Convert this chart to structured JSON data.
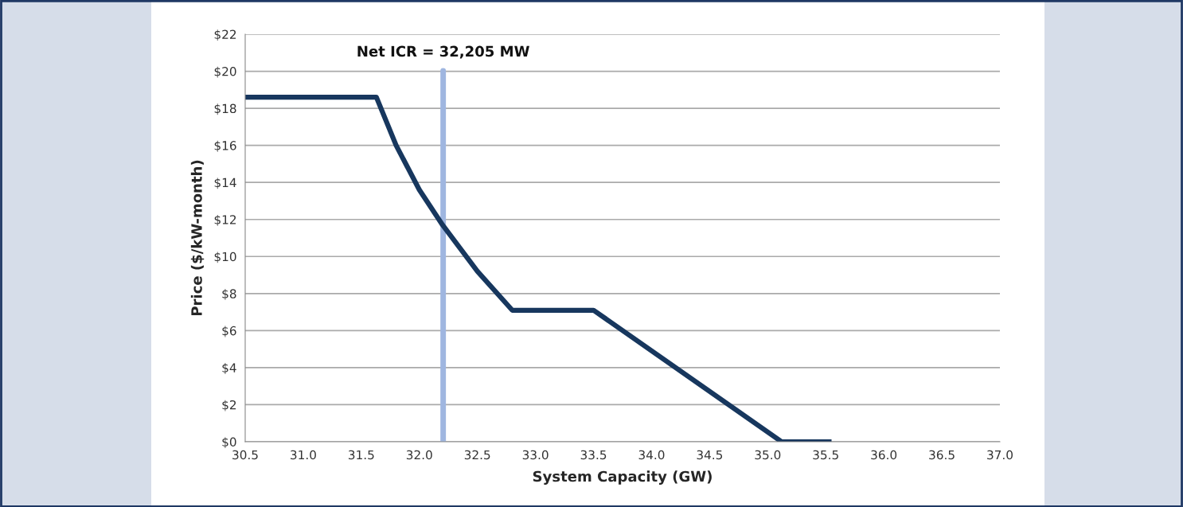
{
  "chart_data": {
    "type": "line",
    "xlabel": "System Capacity (GW)",
    "ylabel": "Price ($/kW-month)",
    "x": [
      30.5,
      31.63,
      31.8,
      32.0,
      32.2,
      32.5,
      32.8,
      33.5,
      35.12,
      35.55
    ],
    "series": [
      {
        "color": "#17375e",
        "values": [
          18.6,
          18.6,
          16.0,
          13.6,
          11.7,
          9.2,
          7.1,
          7.1,
          0,
          0
        ]
      }
    ],
    "xlim": [
      30.5,
      37.0
    ],
    "xticks": [
      30.5,
      {
        "value": 31,
        "label": "31.0"
      },
      31.5,
      {
        "value": 32,
        "label": "32.0"
      },
      32.5,
      {
        "value": 33,
        "label": "33.0"
      },
      33.5,
      {
        "value": 34,
        "label": "34.0"
      },
      34.5,
      {
        "value": 35,
        "label": "35.0"
      },
      35.5,
      {
        "value": 36,
        "label": "36.0"
      },
      36.5,
      {
        "value": 37,
        "label": "37.0"
      }
    ],
    "ylim": [
      0,
      22
    ],
    "yticks": [
      {
        "value": 0,
        "label": "$0"
      },
      {
        "value": 2,
        "label": "$2"
      },
      {
        "value": 4,
        "label": "$4"
      },
      {
        "value": 6,
        "label": "$6"
      },
      {
        "value": 8,
        "label": "$8"
      },
      {
        "value": 10,
        "label": "$10"
      },
      {
        "value": 12,
        "label": "$12"
      },
      {
        "value": 14,
        "label": "$14"
      },
      {
        "value": 16,
        "label": "$16"
      },
      {
        "value": 18,
        "label": "$18"
      },
      {
        "value": 20,
        "label": "$20"
      },
      {
        "value": 22,
        "label": "$22"
      }
    ],
    "ref_lines": [
      {
        "axis": "x",
        "value": 32.205,
        "label": "Net ICR = 32,205 MW",
        "color": "#9fb6e0",
        "line_style": "solid"
      }
    ],
    "grid": "y",
    "legend": false,
    "marker": "none",
    "line_style": "solid"
  }
}
